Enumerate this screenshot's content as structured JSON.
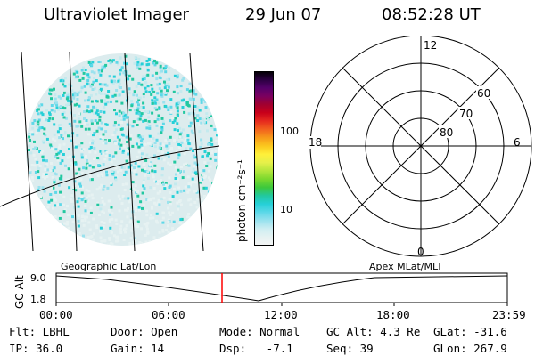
{
  "header": {
    "instrument": "Ultraviolet Imager",
    "date": "29 Jun 07",
    "time": "08:52:28 UT"
  },
  "colorbar": {
    "unit_label": "photon cm⁻²s⁻¹",
    "ticks": [
      "100",
      "10"
    ],
    "colors": [
      "#000000",
      "#2a0040",
      "#55006a",
      "#7a0060",
      "#a00030",
      "#c8001a",
      "#e62a1e",
      "#f2621e",
      "#f79a1a",
      "#fbc81e",
      "#fff03a",
      "#e6f04a",
      "#b4e63c",
      "#7ad82e",
      "#3cc83c",
      "#22c8a0",
      "#26d0d8",
      "#5ed8e8",
      "#9ae2ee",
      "#cfeef2",
      "#e6f2f2",
      "#f4f4f4"
    ]
  },
  "polar_plot": {
    "mlt_labels": {
      "top": "12",
      "left": "18",
      "right": "6",
      "bottom": "0"
    },
    "lat_labels": [
      "60",
      "70",
      "80"
    ]
  },
  "timeline": {
    "left_label": "Geographic Lat/Lon",
    "right_label": "Apex MLat/MLT",
    "axis_title": "GC Alt",
    "y_ticks": [
      "9.0",
      "1.8"
    ],
    "x_ticks": [
      "00:00",
      "06:00",
      "12:00",
      "18:00",
      "23:59"
    ],
    "cursor_color": "#ff0000"
  },
  "status": {
    "row1": {
      "flt": "Flt: LBHL",
      "door": "Door: Open",
      "mode": "Mode: Normal",
      "gcalt": "GC Alt: 4.3 Re",
      "glat": "GLat: -31.6"
    },
    "row2": {
      "ip": "IP: 36.0",
      "gain": "Gain: 14",
      "dsp": "Dsp:   -7.1",
      "seq": "Seq: 39",
      "glon": "GLon: 267.9"
    }
  }
}
